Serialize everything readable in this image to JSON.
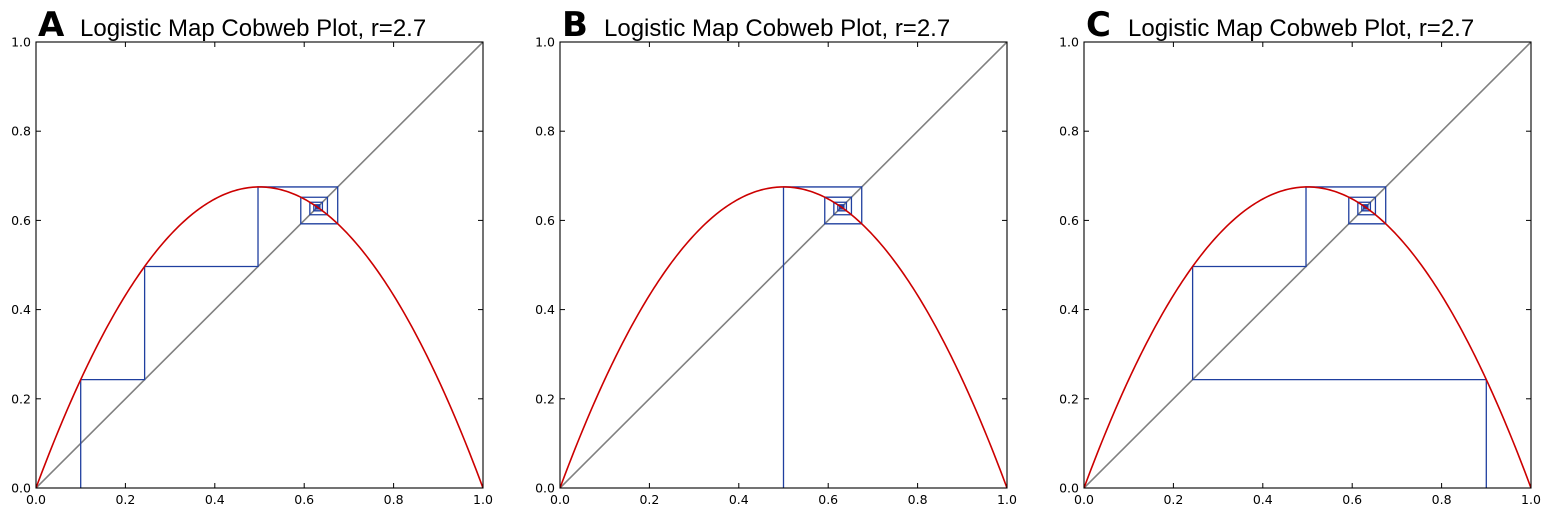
{
  "chart_data": [
    {
      "type": "line",
      "panel_label": "A",
      "title": "Logistic Map Cobweb Plot, r=2.7",
      "r": 2.7,
      "x0": 0.1,
      "iterations": 40,
      "xlim": [
        0.0,
        1.0
      ],
      "ylim": [
        0.0,
        1.0
      ],
      "xticks": [
        "0.0",
        "0.2",
        "0.4",
        "0.6",
        "0.8",
        "1.0"
      ],
      "yticks": [
        "0.0",
        "0.2",
        "0.4",
        "0.6",
        "0.8",
        "1.0"
      ],
      "grid": false,
      "series": [
        {
          "role": "logistic-map",
          "formula": "r*x*(1-x)",
          "color": "#cc0000"
        },
        {
          "role": "identity",
          "x": [
            0.0,
            1.0
          ],
          "y": [
            0.0,
            1.0
          ],
          "color": "#808080"
        },
        {
          "role": "cobweb",
          "start": 0.1,
          "color": "#1f3f9f"
        }
      ]
    },
    {
      "type": "line",
      "panel_label": "B",
      "title": "Logistic Map Cobweb Plot, r=2.7",
      "r": 2.7,
      "x0": 0.5,
      "iterations": 40,
      "xlim": [
        0.0,
        1.0
      ],
      "ylim": [
        0.0,
        1.0
      ],
      "xticks": [
        "0.0",
        "0.2",
        "0.4",
        "0.6",
        "0.8",
        "1.0"
      ],
      "yticks": [
        "0.0",
        "0.2",
        "0.4",
        "0.6",
        "0.8",
        "1.0"
      ],
      "grid": false,
      "series": [
        {
          "role": "logistic-map",
          "formula": "r*x*(1-x)",
          "color": "#cc0000"
        },
        {
          "role": "identity",
          "x": [
            0.0,
            1.0
          ],
          "y": [
            0.0,
            1.0
          ],
          "color": "#808080"
        },
        {
          "role": "cobweb",
          "start": 0.5,
          "color": "#1f3f9f"
        }
      ]
    },
    {
      "type": "line",
      "panel_label": "C",
      "title": "Logistic Map Cobweb Plot, r=2.7",
      "r": 2.7,
      "x0": 0.9,
      "iterations": 40,
      "xlim": [
        0.0,
        1.0
      ],
      "ylim": [
        0.0,
        1.0
      ],
      "xticks": [
        "0.0",
        "0.2",
        "0.4",
        "0.6",
        "0.8",
        "1.0"
      ],
      "yticks": [
        "0.0",
        "0.2",
        "0.4",
        "0.6",
        "0.8",
        "1.0"
      ],
      "grid": false,
      "series": [
        {
          "role": "logistic-map",
          "formula": "r*x*(1-x)",
          "color": "#cc0000"
        },
        {
          "role": "identity",
          "x": [
            0.0,
            1.0
          ],
          "y": [
            0.0,
            1.0
          ],
          "color": "#808080"
        },
        {
          "role": "cobweb",
          "start": 0.9,
          "color": "#1f3f9f"
        }
      ]
    }
  ]
}
